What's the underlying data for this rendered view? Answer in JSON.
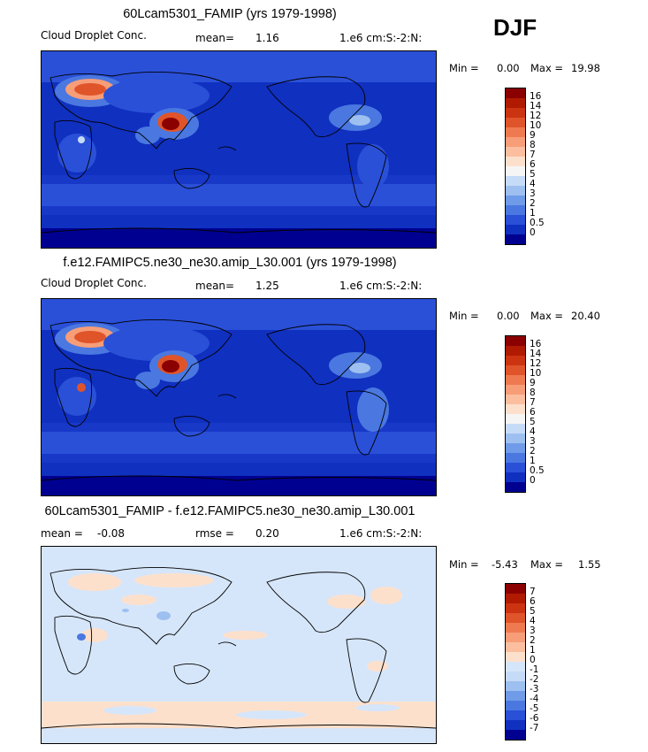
{
  "season": "DJF",
  "panels": [
    {
      "title": "60Lcam5301_FAMIP (yrs 1979-1998)",
      "variable": "Cloud Droplet Conc.",
      "stat_label": "mean=",
      "stat_value": "1.16",
      "units": "1.e6 cm:S:-2:N:",
      "min_label": "Min =",
      "min_value": "0.00",
      "max_label": "Max =",
      "max_value": "19.98",
      "colorbar": {
        "labels": [
          "16",
          "14",
          "12",
          "10",
          "9",
          "8",
          "7",
          "6",
          "5",
          "4",
          "3",
          "2",
          "1",
          "0.5",
          "0"
        ],
        "colors": [
          "#8b0000",
          "#b01a00",
          "#cc3311",
          "#e0542a",
          "#f07a50",
          "#f79d78",
          "#fbbfa0",
          "#fde0cc",
          "#f5f5f5",
          "#c6dbf7",
          "#9ec0f0",
          "#6f9be8",
          "#4a78e0",
          "#2a50d8",
          "#1030c0",
          "#000090"
        ]
      }
    },
    {
      "title": "f.e12.FAMIPC5.ne30_ne30.amip_L30.001 (yrs 1979-1998)",
      "variable": "Cloud Droplet Conc.",
      "stat_label": "mean=",
      "stat_value": "1.25",
      "units": "1.e6 cm:S:-2:N:",
      "min_label": "Min =",
      "min_value": "0.00",
      "max_label": "Max =",
      "max_value": "20.40",
      "colorbar": {
        "labels": [
          "16",
          "14",
          "12",
          "10",
          "9",
          "8",
          "7",
          "6",
          "5",
          "4",
          "3",
          "2",
          "1",
          "0.5",
          "0"
        ],
        "colors": [
          "#8b0000",
          "#b01a00",
          "#cc3311",
          "#e0542a",
          "#f07a50",
          "#f79d78",
          "#fbbfa0",
          "#fde0cc",
          "#f5f5f5",
          "#c6dbf7",
          "#9ec0f0",
          "#6f9be8",
          "#4a78e0",
          "#2a50d8",
          "#1030c0",
          "#000090"
        ]
      }
    },
    {
      "title": "60Lcam5301_FAMIP - f.e12.FAMIPC5.ne30_ne30.amip_L30.001",
      "variable": "mean =",
      "stat_label": "rmse =",
      "stat_value": "0.20",
      "diff_mean": "-0.08",
      "units": "1.e6 cm:S:-2:N:",
      "min_label": "Min =",
      "min_value": "-5.43",
      "max_label": "Max =",
      "max_value": "1.55",
      "colorbar": {
        "labels": [
          "7",
          "6",
          "5",
          "4",
          "3",
          "2",
          "1",
          "0",
          "-1",
          "-2",
          "-3",
          "-4",
          "-5",
          "-6",
          "-7"
        ],
        "colors": [
          "#8b0000",
          "#b01a00",
          "#cc3311",
          "#e0542a",
          "#f07a50",
          "#f79d78",
          "#fbbfa0",
          "#fde0cc",
          "#d6e6fa",
          "#c6dbf7",
          "#9ec0f0",
          "#6f9be8",
          "#4a78e0",
          "#2a50d8",
          "#1030c0",
          "#000090"
        ]
      }
    }
  ]
}
